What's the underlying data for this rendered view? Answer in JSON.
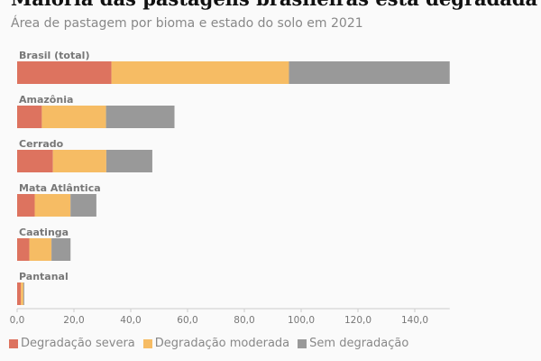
{
  "chart_data": {
    "type": "bar",
    "orientation": "horizontal",
    "stacked": true,
    "title": "Maioria das pastagens brasileiras está degradada",
    "subtitle": "Área de pastagem por bioma e estado do solo em 2021",
    "categories": [
      "Brasil (total)",
      "Amazônia",
      "Cerrado",
      "Mata Atlântica",
      "Caatinga",
      "Pantanal"
    ],
    "series": [
      {
        "name": "Degradação severa",
        "color": "#dd735f",
        "values": [
          33.2,
          8.7,
          12.6,
          6.2,
          4.3,
          1.3
        ]
      },
      {
        "name": "Degradação moderada",
        "color": "#f6bc64",
        "values": [
          62.5,
          22.6,
          18.8,
          12.6,
          7.8,
          0.9
        ]
      },
      {
        "name": "Sem degradação",
        "color": "#999999",
        "values": [
          56.6,
          24.1,
          16.2,
          9.1,
          6.7,
          0.3
        ]
      }
    ],
    "xlim": [
      0,
      152.3
    ],
    "xticks": [
      "0,0",
      "20,0",
      "40,0",
      "60,0",
      "80,0",
      "100,0",
      "120,0",
      "140,0"
    ],
    "grid": false,
    "legend_position": "bottom-left"
  }
}
